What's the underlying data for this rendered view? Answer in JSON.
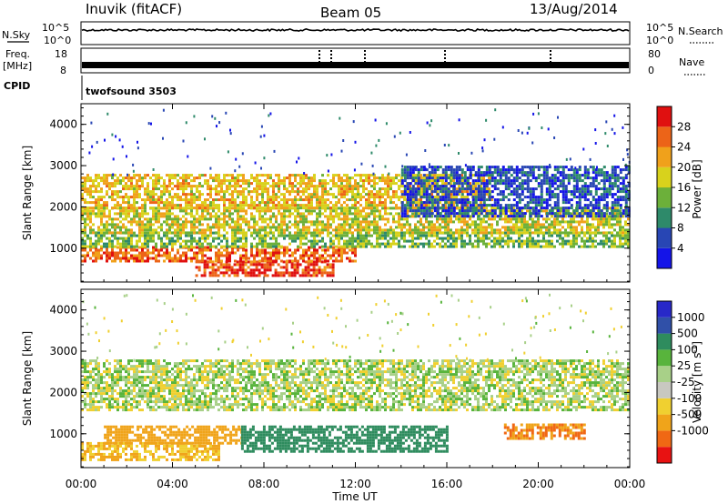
{
  "header": {
    "station": "Inuvik (fitACF)",
    "beam": "Beam 05",
    "date": "13/Aug/2014"
  },
  "side_labels": {
    "nsky": "N.Sky",
    "nsearch": "N.Search",
    "freq": "Freq.",
    "freq_unit": "[MHz]",
    "nave": "Nave",
    "cpid": "CPID",
    "cpid_value": "twofsound 3503"
  },
  "small_axes": {
    "nsky_ticks": [
      "10^5",
      "10^0"
    ],
    "nsearch_ticks": [
      "10^5",
      "10^0"
    ],
    "freq_ticks": [
      "18",
      "8"
    ],
    "nave_ticks": [
      "80",
      "0"
    ]
  },
  "colors": {
    "power": [
      "#1414e8",
      "#2846b4",
      "#2e8a6a",
      "#6cb03a",
      "#d8d21c",
      "#f0a11b",
      "#ec6418",
      "#e01010"
    ],
    "velocity": [
      "#e81212",
      "#f06814",
      "#f0a41a",
      "#f0d030",
      "#c8c8c0",
      "#a8d088",
      "#58b43c",
      "#2e8c5e",
      "#3050a8",
      "#2828c8"
    ]
  },
  "chart_data": [
    {
      "type": "heatmap",
      "name": "power",
      "xlabel": "",
      "ylabel": "Slant Range [km]",
      "x_ticks": [
        "00:00",
        "04:00",
        "08:00",
        "12:00",
        "16:00",
        "20:00",
        "00:00"
      ],
      "y_ticks": [
        1000,
        2000,
        3000,
        4000
      ],
      "xlim": [
        0,
        24
      ],
      "ylim": [
        180,
        4500
      ],
      "colorbar": {
        "label": "Power [dB]",
        "ticks": [
          4,
          8,
          12,
          16,
          20,
          24,
          28
        ],
        "range": [
          0,
          32
        ]
      },
      "bands": [
        {
          "range_km": [
            350,
            700
          ],
          "value": 28,
          "from_h": 5.0,
          "to_h": 11.0
        },
        {
          "range_km": [
            700,
            1050
          ],
          "value": 26,
          "from_h": 0.0,
          "to_h": 12.0
        },
        {
          "range_km": [
            1050,
            1400
          ],
          "value": 14,
          "from_h": 0.0,
          "to_h": 24.0
        },
        {
          "range_km": [
            1400,
            2000
          ],
          "value": 18,
          "from_h": 0.0,
          "to_h": 24.0
        },
        {
          "range_km": [
            2000,
            2800
          ],
          "value": 20,
          "from_h": 0.0,
          "to_h": 18.0
        },
        {
          "range_km": [
            1800,
            3000
          ],
          "value": 6,
          "from_h": 14.0,
          "to_h": 24.0
        }
      ]
    },
    {
      "type": "heatmap",
      "name": "velocity",
      "xlabel": "Time UT",
      "ylabel": "Slant Range [km]",
      "x_ticks": [
        "00:00",
        "04:00",
        "08:00",
        "12:00",
        "16:00",
        "20:00",
        "00:00"
      ],
      "y_ticks": [
        1000,
        2000,
        3000,
        4000
      ],
      "xlim": [
        0,
        24
      ],
      "ylim": [
        180,
        4500
      ],
      "colorbar": {
        "label": "Velocity [m s^-1]",
        "ticks": [
          1000,
          500,
          100,
          25,
          -25,
          -100,
          -500,
          -1000
        ]
      },
      "bands": [
        {
          "range_km": [
            400,
            800
          ],
          "value": -100,
          "from_h": 0.0,
          "to_h": 6.0
        },
        {
          "range_km": [
            800,
            1200
          ],
          "value": -300,
          "from_h": 1.0,
          "to_h": 7.0
        },
        {
          "range_km": [
            600,
            1200
          ],
          "value": 200,
          "from_h": 7.0,
          "to_h": 16.0
        },
        {
          "range_km": [
            1600,
            2800
          ],
          "value": 0,
          "from_h": 0.0,
          "to_h": 24.0
        },
        {
          "range_km": [
            900,
            1250
          ],
          "value": -500,
          "from_h": 18.5,
          "to_h": 22.0
        }
      ]
    }
  ]
}
